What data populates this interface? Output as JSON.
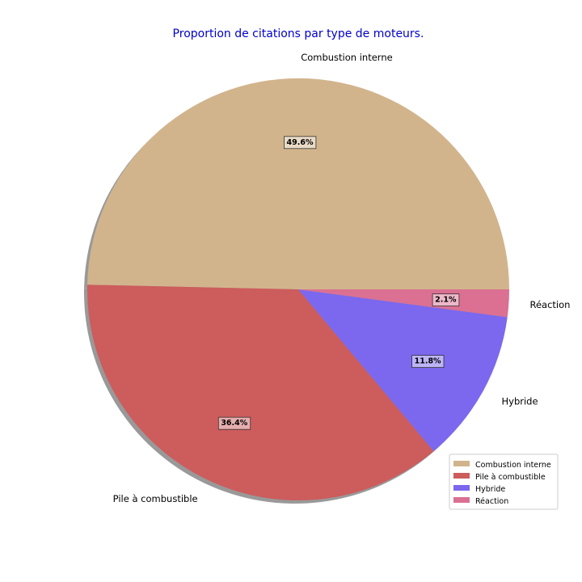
{
  "chart_data": {
    "type": "pie",
    "title": "Proportion de citations par type de moteurs.",
    "start_angle_deg": 0,
    "direction": "counterclockwise",
    "shadow": true,
    "legend_position": "lower-right",
    "slices": [
      {
        "label": "Combustion interne",
        "value": 49.6,
        "pct_label": "49.6%",
        "color": "#d2b48c"
      },
      {
        "label": "Pile à combustible",
        "value": 36.4,
        "pct_label": "36.4%",
        "color": "#cd5c5c"
      },
      {
        "label": "Hybride",
        "value": 11.8,
        "pct_label": "11.8%",
        "color": "#7b68ee"
      },
      {
        "label": "Réaction",
        "value": 2.1,
        "pct_label": "2.1%",
        "color": "#db7093"
      }
    ]
  }
}
